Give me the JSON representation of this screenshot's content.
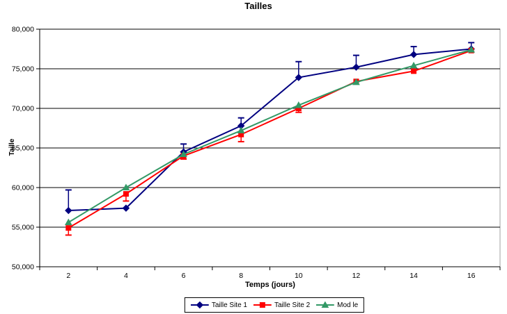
{
  "page": {
    "background": "#FFFFFF"
  },
  "chart_data": {
    "type": "line",
    "title": "Tailles",
    "xlabel": "Temps (jours)",
    "ylabel": "Taille",
    "x": [
      2,
      4,
      6,
      8,
      10,
      12,
      14,
      16
    ],
    "ylim": [
      50000,
      80000
    ],
    "ytick_step": 5000,
    "ytick_labels": [
      "50,000",
      "55,000",
      "60,000",
      "65,000",
      "70,000",
      "75,000",
      "80,000"
    ],
    "grid": "horizontal-black",
    "plot_border_color": "#a0a0a0",
    "legend_position": "bottom-center",
    "series": [
      {
        "name": "Taille Site 1",
        "color": "#000080",
        "marker": "diamond",
        "values": [
          57100,
          57400,
          64500,
          67800,
          73900,
          75200,
          76800,
          77500
        ],
        "error_up_to": [
          59700,
          null,
          65500,
          68800,
          75900,
          76700,
          77800,
          78300
        ]
      },
      {
        "name": "Taille Site 2",
        "color": "#FF0000",
        "marker": "square",
        "values": [
          54900,
          59200,
          64000,
          66700,
          70000,
          73400,
          74700,
          77300
        ],
        "error_down_to": [
          54000,
          58300,
          63600,
          65800,
          69500,
          null,
          null,
          null
        ]
      },
      {
        "name": "Mod le",
        "color": "#339966",
        "marker": "triangle",
        "values": [
          55600,
          60000,
          64200,
          67200,
          70400,
          73300,
          75400,
          77400
        ]
      }
    ]
  }
}
